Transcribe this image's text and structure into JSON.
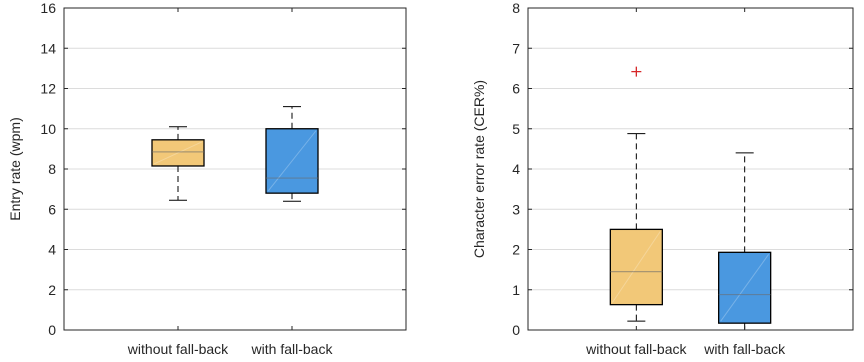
{
  "chart_data": [
    {
      "type": "box",
      "title": "",
      "xlabel": "",
      "ylabel": "Entry rate (wpm)",
      "ylim": [
        0,
        16
      ],
      "yticks": [
        0,
        2,
        4,
        6,
        8,
        10,
        12,
        14,
        16
      ],
      "grid": "horizontal",
      "categories": [
        "without fall-back",
        "with fall-back"
      ],
      "boxes": [
        {
          "category": "without fall-back",
          "whisker_low": 6.45,
          "q1": 8.15,
          "median": 8.85,
          "q3": 9.45,
          "whisker_high": 10.1,
          "outliers": [],
          "color": "#f2c878"
        },
        {
          "category": "with fall-back",
          "whisker_low": 6.4,
          "q1": 6.8,
          "median": 7.55,
          "q3": 10.0,
          "whisker_high": 11.1,
          "outliers": [],
          "color": "#4a98e0"
        }
      ]
    },
    {
      "type": "box",
      "title": "",
      "xlabel": "",
      "ylabel": "Character error rate (CER%)",
      "ylim": [
        0,
        8
      ],
      "yticks": [
        0,
        1,
        2,
        3,
        4,
        5,
        6,
        7,
        8
      ],
      "grid": "horizontal",
      "categories": [
        "without fall-back",
        "with fall-back"
      ],
      "boxes": [
        {
          "category": "without fall-back",
          "whisker_low": 0.22,
          "q1": 0.63,
          "median": 1.45,
          "q3": 2.5,
          "whisker_high": 4.88,
          "outliers": [
            6.42
          ],
          "color": "#f2c878"
        },
        {
          "category": "with fall-back",
          "whisker_low": 0.0,
          "q1": 0.17,
          "median": 0.88,
          "q3": 1.93,
          "whisker_high": 4.4,
          "outliers": [],
          "color": "#4a98e0"
        }
      ]
    }
  ],
  "colors": {
    "outlier": "#d62728",
    "axis": "#262626",
    "grid": "#dcdcdc",
    "box_edge": "#000000",
    "whisker": "#000000"
  }
}
